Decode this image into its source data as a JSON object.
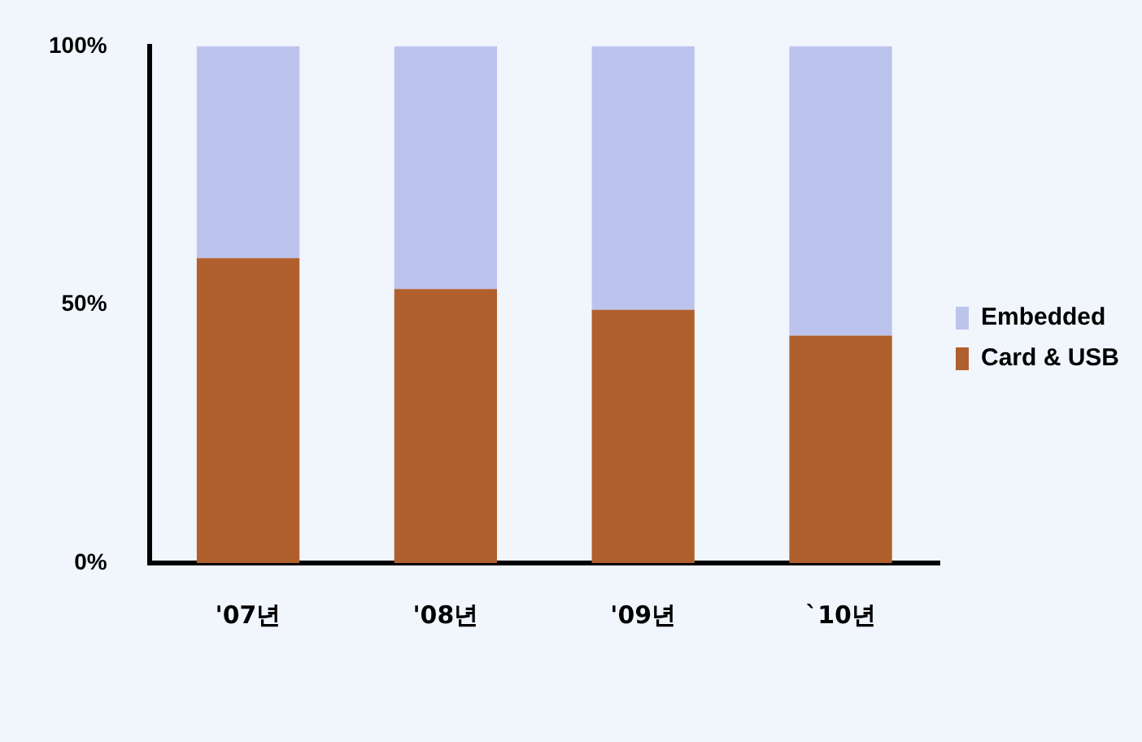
{
  "chart_data": {
    "type": "bar",
    "stacked": true,
    "categories": [
      "'07년",
      "'08년",
      "'09년",
      "`10년"
    ],
    "series": [
      {
        "name": "Card & USB",
        "color": "#b0602c",
        "values": [
          59,
          53,
          49,
          44
        ]
      },
      {
        "name": "Embedded",
        "color": "#bcc4ee",
        "values": [
          41,
          47,
          51,
          56
        ]
      }
    ],
    "ylim": [
      0,
      100
    ],
    "yticks": [
      {
        "value": 0,
        "label": "0%"
      },
      {
        "value": 50,
        "label": "50%"
      },
      {
        "value": 100,
        "label": "100%"
      }
    ],
    "grid": false,
    "legend": "right"
  }
}
